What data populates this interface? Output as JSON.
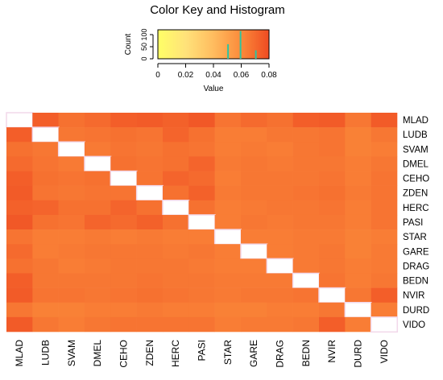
{
  "color_key": {
    "title": "Color Key and Histogram",
    "ylabel": "Count",
    "xlabel": "Value",
    "xticks": [
      0,
      0.02,
      0.04,
      0.06,
      0.08
    ],
    "xtick_labels": [
      "0",
      "0.02",
      "0.04",
      "0.06",
      "0.08"
    ],
    "yticks": [
      0,
      50,
      100
    ],
    "ytick_labels": [
      "0",
      "50",
      "100"
    ],
    "xlim": [
      0,
      0.08
    ],
    "ylim": [
      0,
      120
    ],
    "gradient": [
      "#ffff66",
      "#ffe27a",
      "#ffbc5f",
      "#fb8a3a",
      "#ef4b22"
    ],
    "hist_color": "#2ec4a0",
    "hist_bars": [
      {
        "value": 0.0505,
        "count": 60
      },
      {
        "value": 0.0595,
        "count": 115
      },
      {
        "value": 0.0705,
        "count": 35
      }
    ]
  },
  "chart_data": {
    "type": "heatmap",
    "labels": [
      "MLAD",
      "LUDB",
      "SVAM",
      "DMEL",
      "CEHO",
      "ZDEN",
      "HERC",
      "PASI",
      "STAR",
      "GARE",
      "DRAG",
      "BEDN",
      "NVIR",
      "DURD",
      "VIDO"
    ],
    "value_range": [
      0,
      0.08
    ],
    "diagonal_color": "#ffffff",
    "values": [
      [
        0,
        0.074,
        0.068,
        0.07,
        0.074,
        0.075,
        0.073,
        0.076,
        0.067,
        0.07,
        0.068,
        0.074,
        0.075,
        0.066,
        0.075
      ],
      [
        0.074,
        0,
        0.066,
        0.067,
        0.068,
        0.067,
        0.072,
        0.068,
        0.064,
        0.064,
        0.066,
        0.066,
        0.067,
        0.063,
        0.066
      ],
      [
        0.068,
        0.066,
        0,
        0.065,
        0.067,
        0.066,
        0.068,
        0.067,
        0.064,
        0.065,
        0.064,
        0.066,
        0.067,
        0.063,
        0.064
      ],
      [
        0.07,
        0.067,
        0.065,
        0,
        0.068,
        0.067,
        0.068,
        0.072,
        0.065,
        0.066,
        0.065,
        0.066,
        0.066,
        0.064,
        0.066
      ],
      [
        0.074,
        0.068,
        0.067,
        0.068,
        0,
        0.067,
        0.072,
        0.07,
        0.064,
        0.066,
        0.066,
        0.066,
        0.067,
        0.064,
        0.067
      ],
      [
        0.075,
        0.067,
        0.066,
        0.067,
        0.067,
        0,
        0.068,
        0.073,
        0.065,
        0.066,
        0.066,
        0.067,
        0.068,
        0.065,
        0.067
      ],
      [
        0.073,
        0.072,
        0.068,
        0.068,
        0.072,
        0.068,
        0,
        0.068,
        0.064,
        0.065,
        0.066,
        0.066,
        0.067,
        0.064,
        0.067
      ],
      [
        0.076,
        0.068,
        0.067,
        0.072,
        0.07,
        0.073,
        0.068,
        0,
        0.064,
        0.066,
        0.065,
        0.066,
        0.066,
        0.064,
        0.067
      ],
      [
        0.067,
        0.064,
        0.064,
        0.065,
        0.064,
        0.065,
        0.064,
        0.064,
        0,
        0.064,
        0.064,
        0.065,
        0.065,
        0.063,
        0.064
      ],
      [
        0.07,
        0.064,
        0.065,
        0.066,
        0.066,
        0.066,
        0.065,
        0.066,
        0.064,
        0,
        0.064,
        0.065,
        0.066,
        0.063,
        0.065
      ],
      [
        0.068,
        0.066,
        0.064,
        0.065,
        0.066,
        0.066,
        0.066,
        0.065,
        0.064,
        0.064,
        0,
        0.065,
        0.066,
        0.064,
        0.065
      ],
      [
        0.074,
        0.066,
        0.066,
        0.066,
        0.066,
        0.067,
        0.066,
        0.066,
        0.065,
        0.065,
        0.065,
        0,
        0.067,
        0.064,
        0.066
      ],
      [
        0.075,
        0.067,
        0.067,
        0.066,
        0.067,
        0.068,
        0.067,
        0.066,
        0.065,
        0.066,
        0.066,
        0.067,
        0,
        0.066,
        0.074
      ],
      [
        0.066,
        0.063,
        0.063,
        0.064,
        0.064,
        0.065,
        0.064,
        0.064,
        0.063,
        0.063,
        0.064,
        0.064,
        0.066,
        0,
        0.064
      ],
      [
        0.075,
        0.066,
        0.064,
        0.066,
        0.067,
        0.067,
        0.067,
        0.067,
        0.064,
        0.065,
        0.065,
        0.066,
        0.074,
        0.064,
        0
      ]
    ]
  }
}
